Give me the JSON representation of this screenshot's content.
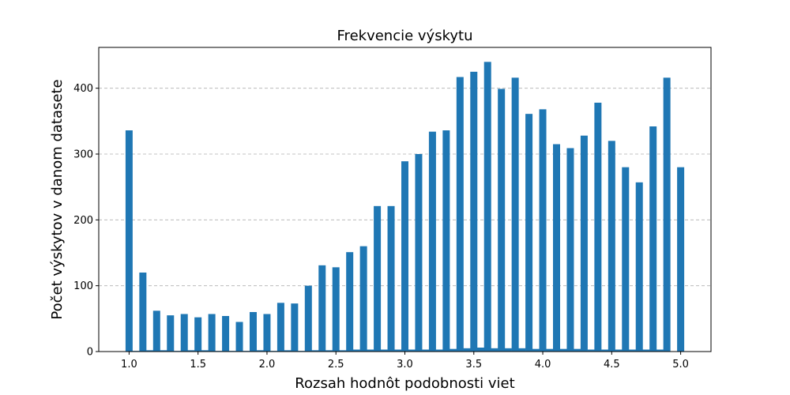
{
  "chart_data": {
    "type": "bar",
    "title": "Frekvencie výskytu",
    "xlabel": "Rozsah hodnôt podobnosti viet",
    "ylabel": "Počet výskytov v danom datasete",
    "xlim": [
      0.78,
      5.22
    ],
    "ylim": [
      0,
      462
    ],
    "x_ticks": [
      "1.0",
      "1.5",
      "2.0",
      "2.5",
      "3.0",
      "3.5",
      "4.0",
      "4.5",
      "5.0"
    ],
    "y_ticks": [
      "0",
      "100",
      "200",
      "300",
      "400"
    ],
    "grid": "y-dashed",
    "bar_color": "#1f77b4",
    "series": [
      {
        "x": [
          1.0,
          1.1,
          1.2,
          1.3,
          1.4,
          1.5,
          1.6,
          1.7,
          1.8,
          1.9,
          2.0,
          2.1,
          2.2,
          2.3,
          2.4,
          2.5,
          2.6,
          2.7,
          2.8,
          2.9,
          3.0,
          3.1,
          3.2,
          3.3,
          3.4,
          3.5,
          3.6,
          3.7,
          3.8,
          3.9,
          4.0,
          4.1,
          4.2,
          4.3,
          4.4,
          4.5,
          4.6,
          4.7,
          4.8,
          4.9,
          5.0
        ],
        "values": [
          336,
          120,
          62,
          55,
          57,
          52,
          57,
          54,
          45,
          60,
          57,
          74,
          73,
          100,
          131,
          128,
          151,
          160,
          221,
          221,
          289,
          300,
          334,
          336,
          417,
          425,
          440,
          399,
          416,
          361,
          368,
          315,
          309,
          328,
          378,
          320,
          280,
          257,
          342,
          416,
          280
        ]
      },
      {
        "x": [
          1.05,
          1.15,
          1.25,
          1.35,
          1.45,
          1.55,
          1.65,
          1.75,
          1.85,
          1.95,
          2.05,
          2.15,
          2.25,
          2.35,
          2.45,
          2.55,
          2.65,
          2.75,
          2.85,
          2.95,
          3.05,
          3.15,
          3.25,
          3.35,
          3.45,
          3.55,
          3.65,
          3.75,
          3.85,
          3.95,
          4.05,
          4.15,
          4.25,
          4.35,
          4.45,
          4.55,
          4.65,
          4.75,
          4.85
        ],
        "values": [
          1,
          2,
          2,
          1,
          2,
          2,
          1,
          1,
          1,
          2,
          1,
          2,
          1,
          2,
          2,
          2,
          3,
          3,
          3,
          3,
          3,
          3,
          3,
          4,
          5,
          6,
          5,
          5,
          5,
          4,
          4,
          4,
          4,
          3,
          3,
          3,
          3,
          3,
          3
        ]
      }
    ]
  }
}
